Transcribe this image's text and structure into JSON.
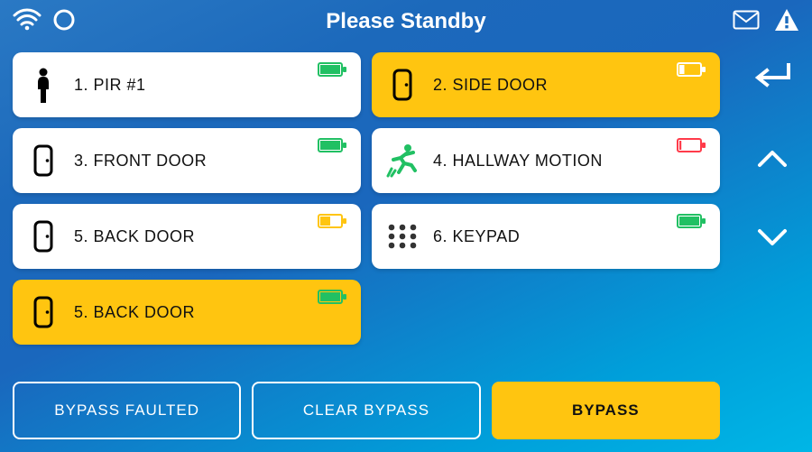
{
  "header": {
    "title": "Please Standby"
  },
  "zones": [
    {
      "label": "1. PIR #1",
      "icon": "person",
      "icon_color": "#000000",
      "selected": false,
      "battery_color": "#21c063",
      "battery_fill": 1.0
    },
    {
      "label": "2. SIDE DOOR",
      "icon": "door",
      "icon_color": "#000000",
      "selected": true,
      "battery_color": "#ffffff",
      "battery_fill": 0.25
    },
    {
      "label": "3. FRONT DOOR",
      "icon": "door",
      "icon_color": "#000000",
      "selected": false,
      "battery_color": "#21c063",
      "battery_fill": 1.0
    },
    {
      "label": "4. HALLWAY MOTION",
      "icon": "motion",
      "icon_color": "#21c063",
      "selected": false,
      "battery_color": "#ff3b4a",
      "battery_fill": 0.1
    },
    {
      "label": "5. BACK DOOR",
      "icon": "door",
      "icon_color": "#000000",
      "selected": false,
      "battery_color": "#ffc510",
      "battery_fill": 0.5
    },
    {
      "label": "6. KEYPAD",
      "icon": "keypad",
      "icon_color": "#333333",
      "selected": false,
      "battery_color": "#21c063",
      "battery_fill": 1.0
    },
    {
      "label": "5. BACK DOOR",
      "icon": "door",
      "icon_color": "#000000",
      "selected": true,
      "battery_color": "#21c063",
      "battery_fill": 1.0
    }
  ],
  "buttons": {
    "bypass_faulted": "BYPASS FAULTED",
    "clear_bypass": "CLEAR BYPASS",
    "bypass": "BYPASS"
  },
  "colors": {
    "selected_bg": "#ffc510",
    "card_bg": "#ffffff"
  }
}
